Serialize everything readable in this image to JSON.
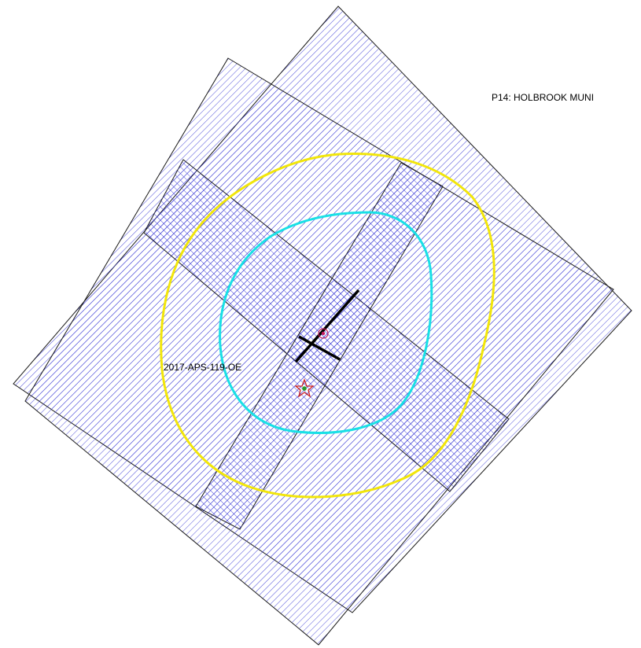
{
  "airport_label": "P14: HOLBROOK MUNI",
  "obstacle_label": "2017-APS-119-OE",
  "colors": {
    "hatch": "#3b3bd6",
    "outline": "#1a1a1a",
    "yellow_contour": "#f2e60a",
    "cyan_contour": "#19e0e6",
    "runway": "#000000",
    "star": "#cc2222",
    "star_center": "#2a9a2a",
    "marker": "#c2185b"
  }
}
